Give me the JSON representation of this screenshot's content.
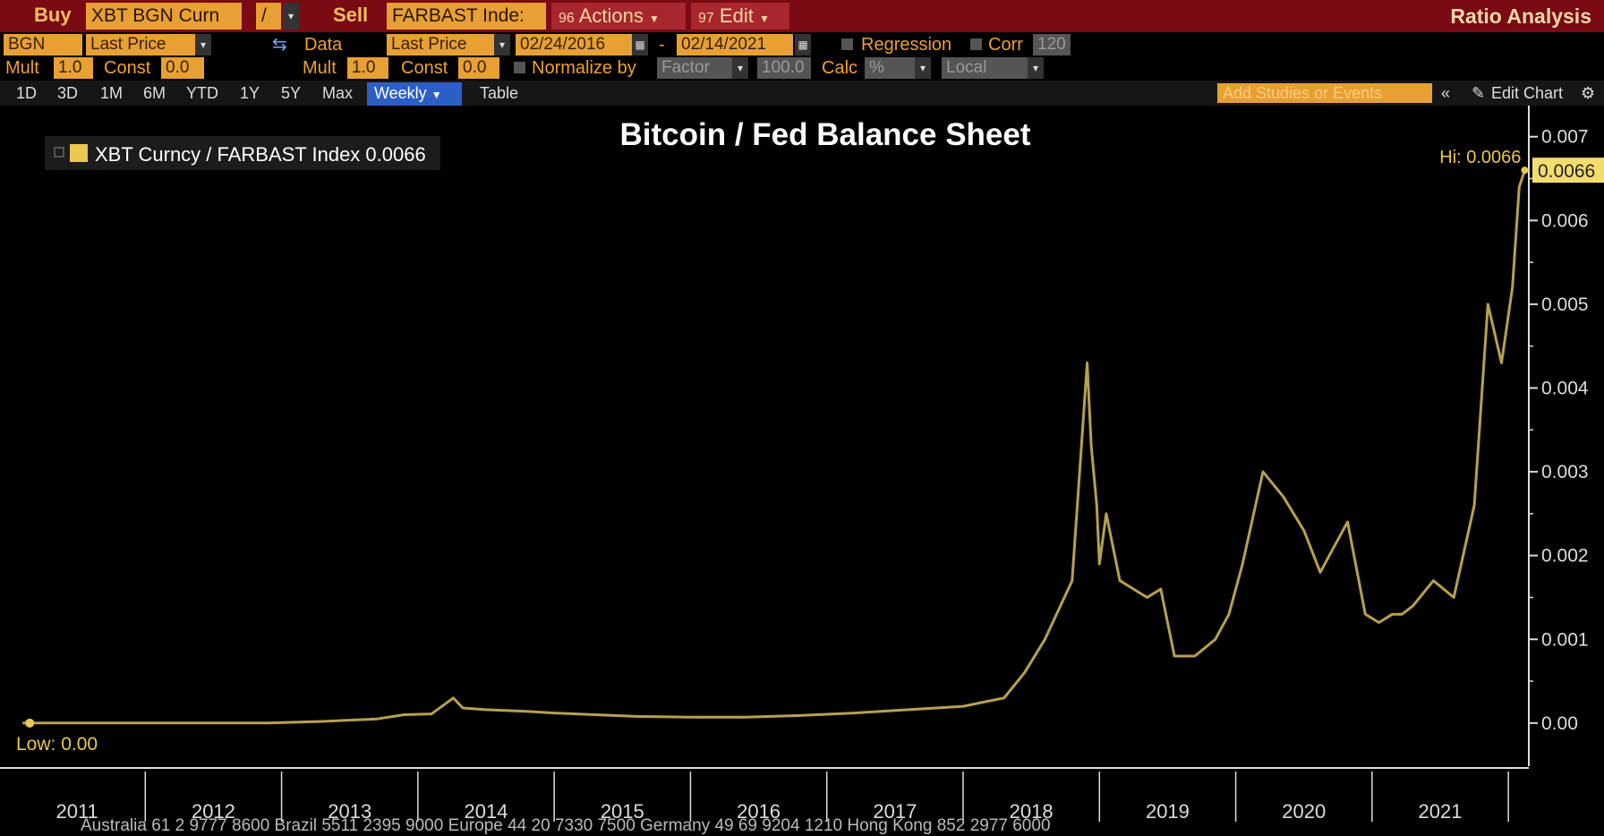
{
  "toolbar": {
    "buy_label": "Buy",
    "buy_ticker": "XBT BGN Curn",
    "operator": "/",
    "sell_label": "Sell",
    "sell_ticker": "FARBAST Inde:",
    "actions_num": "96",
    "actions_label": "Actions",
    "edit_num": "97",
    "edit_label": "Edit",
    "title": "Ratio Analysis"
  },
  "row2": {
    "source": "BGN",
    "field": "Last Price",
    "data_label": "Data",
    "data_field": "Last Price",
    "start_date": "02/24/2016",
    "date_sep": "-",
    "end_date": "02/14/2021",
    "regression_label": "Regression",
    "corr_label": "Corr",
    "corr_value": "120"
  },
  "row3": {
    "mult1_label": "Mult",
    "mult1_value": "1.0",
    "const1_label": "Const",
    "const1_value": "0.0",
    "mult2_label": "Mult",
    "mult2_value": "1.0",
    "const2_label": "Const",
    "const2_value": "0.0",
    "normalize_label": "Normalize by",
    "normalize_value": "Factor",
    "factor_value": "100.0",
    "calc_label": "Calc",
    "calc_value": "%",
    "local_value": "Local"
  },
  "tabs": {
    "items": [
      "1D",
      "3D",
      "1M",
      "6M",
      "YTD",
      "1Y",
      "5Y",
      "Max"
    ],
    "period": "Weekly",
    "table": "Table",
    "studies_placeholder": "Add Studies or Events",
    "edit_chart": "Edit Chart"
  },
  "footer": {
    "ticker": "Australia 61 2 9777 8600 Brazil 5511 2395 9000 Europe 44 20 7330 7500 Germany 49 69 9204 1210 Hong Kong 852 2977 6000"
  },
  "colors": {
    "line": "#b8a050",
    "legend_swatch": "#e8c850",
    "header_bg": "#7a0a14",
    "field_bg": "#e8a034"
  },
  "chart_data": {
    "type": "line",
    "title": "Bitcoin / Fed Balance Sheet",
    "legend": [
      {
        "label": "XBT Curncy / FARBAST Index",
        "value": "0.0066"
      }
    ],
    "hi_label": "Hi: 0.0066",
    "low_label": "Low: 0.00",
    "last_value_label": "0.0066",
    "y_ticks": [
      "0.00",
      "0.001",
      "0.002",
      "0.003",
      "0.004",
      "0.005",
      "0.006",
      "0.007"
    ],
    "y_tick_values": [
      0,
      0.001,
      0.002,
      0.003,
      0.004,
      0.005,
      0.006,
      0.007
    ],
    "x_ticks": [
      "2011",
      "2012",
      "2013",
      "2014",
      "2015",
      "2016",
      "2017",
      "2018",
      "2019",
      "2020",
      "2021"
    ],
    "x_tick_positions": [
      2010.5,
      2011.5,
      2012.5,
      2013.5,
      2014.5,
      2015.5,
      2016.5,
      2017.5,
      2018.5,
      2019.5,
      2020.5
    ],
    "year_boundaries": [
      2011,
      2012,
      2013,
      2014,
      2015,
      2016,
      2017,
      2018,
      2019,
      2020,
      2021
    ],
    "ylim": [
      -0.0006,
      0.0072
    ],
    "xlim": [
      2010,
      2021.15
    ],
    "grid": false,
    "series": [
      {
        "name": "XBT Curncy / FARBAST Index",
        "x": [
          2010.1,
          2010.8,
          2011.3,
          2011.9,
          2012.3,
          2012.7,
          2012.9,
          2013.1,
          2013.26,
          2013.33,
          2013.5,
          2013.8,
          2014.0,
          2014.3,
          2014.6,
          2015.0,
          2015.4,
          2015.8,
          2016.2,
          2016.5,
          2016.8,
          2017.0,
          2017.15,
          2017.3,
          2017.45,
          2017.6,
          2017.8,
          2017.91,
          2017.94,
          2017.98,
          2018.0,
          2018.05,
          2018.1,
          2018.15,
          2018.25,
          2018.35,
          2018.45,
          2018.55,
          2018.7,
          2018.85,
          2018.95,
          2019.05,
          2019.2,
          2019.35,
          2019.5,
          2019.62,
          2019.72,
          2019.82,
          2019.95,
          2020.05,
          2020.15,
          2020.22,
          2020.3,
          2020.45,
          2020.6,
          2020.75,
          2020.85,
          2020.95,
          2021.03,
          2021.08,
          2021.12
        ],
        "y": [
          0.0,
          0.0,
          0.0,
          0.0,
          2e-05,
          5e-05,
          0.0001,
          0.00011,
          0.0003,
          0.00018,
          0.00016,
          0.00014,
          0.00012,
          0.0001,
          8e-05,
          7e-05,
          7e-05,
          9e-05,
          0.00012,
          0.00015,
          0.00018,
          0.0002,
          0.00025,
          0.0003,
          0.0006,
          0.001,
          0.0017,
          0.0043,
          0.0033,
          0.0026,
          0.0019,
          0.0025,
          0.0021,
          0.0017,
          0.0016,
          0.0015,
          0.0016,
          0.0008,
          0.0008,
          0.001,
          0.0013,
          0.0019,
          0.003,
          0.0027,
          0.0023,
          0.0018,
          0.0021,
          0.0024,
          0.0013,
          0.0012,
          0.0013,
          0.0013,
          0.0014,
          0.0017,
          0.0015,
          0.0026,
          0.005,
          0.0043,
          0.0052,
          0.0064,
          0.0066
        ]
      }
    ]
  }
}
